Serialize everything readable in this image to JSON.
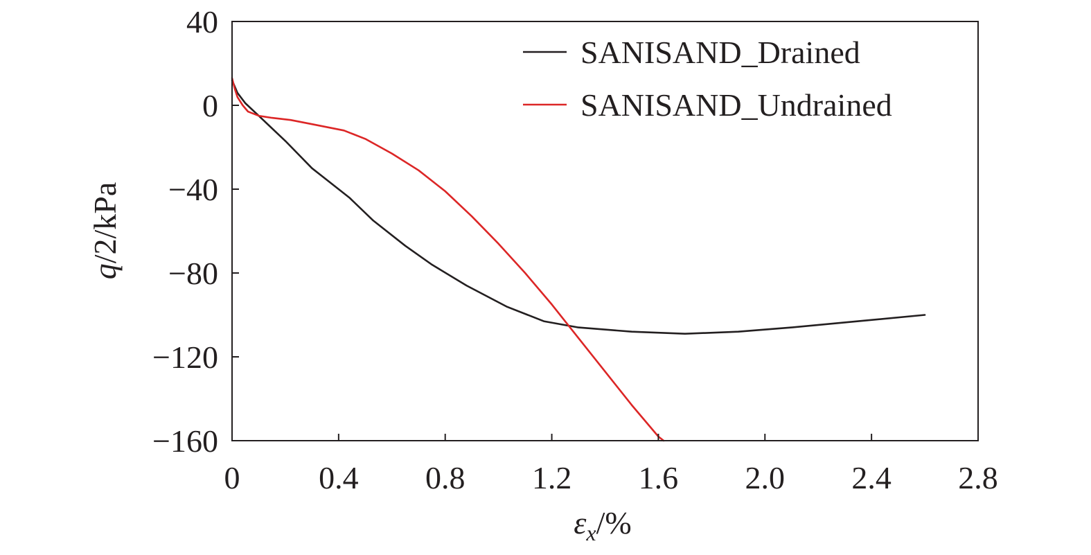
{
  "chart_data": {
    "type": "line",
    "xlabel": {
      "symbol": "ε",
      "subscript": "x",
      "unit": "/%"
    },
    "ylabel": {
      "symbol": "q",
      "unit": "/2/kPa"
    },
    "xlim": [
      0,
      2.8
    ],
    "ylim": [
      -160,
      40
    ],
    "xticks": [
      {
        "value": 0,
        "label": "0"
      },
      {
        "value": 0.4,
        "label": "0.4"
      },
      {
        "value": 0.8,
        "label": "0.8"
      },
      {
        "value": 1.2,
        "label": "1.2"
      },
      {
        "value": 1.6,
        "label": "1.6"
      },
      {
        "value": 2.0,
        "label": "2.0"
      },
      {
        "value": 2.4,
        "label": "2.4"
      },
      {
        "value": 2.8,
        "label": "2.8"
      }
    ],
    "yticks": [
      {
        "value": 40,
        "label": "40"
      },
      {
        "value": 0,
        "label": "0"
      },
      {
        "value": -40,
        "label": "−40"
      },
      {
        "value": -80,
        "label": "−80"
      },
      {
        "value": -120,
        "label": "−120"
      },
      {
        "value": -160,
        "label": "−160"
      }
    ],
    "grid": false,
    "legend_position": "top-right",
    "series": [
      {
        "name": "SANISAND_Drained",
        "color": "#231f20",
        "x": [
          0.0,
          0.02,
          0.05,
          0.1,
          0.2,
          0.3,
          0.44,
          0.53,
          0.65,
          0.75,
          0.88,
          1.03,
          1.17,
          1.3,
          1.5,
          1.7,
          1.9,
          2.1,
          2.35,
          2.6
        ],
        "y": [
          12,
          6,
          1,
          -5,
          -17,
          -30,
          -44,
          -55,
          -67,
          -76,
          -86,
          -96,
          -103,
          -106,
          -108,
          -109,
          -108,
          -106,
          -103,
          -100
        ]
      },
      {
        "name": "SANISAND_Undrained",
        "color": "#dc2626",
        "x": [
          0.0,
          0.01,
          0.02,
          0.04,
          0.06,
          0.1,
          0.15,
          0.22,
          0.3,
          0.42,
          0.5,
          0.6,
          0.7,
          0.8,
          0.9,
          1.0,
          1.1,
          1.2,
          1.3,
          1.4,
          1.5,
          1.6,
          1.62
        ],
        "y": [
          13,
          8,
          4,
          0,
          -3,
          -5,
          -6,
          -7,
          -9,
          -12,
          -16,
          -23,
          -31,
          -41,
          -53,
          -66,
          -80,
          -95,
          -111,
          -127,
          -143,
          -158,
          -160
        ]
      }
    ]
  }
}
